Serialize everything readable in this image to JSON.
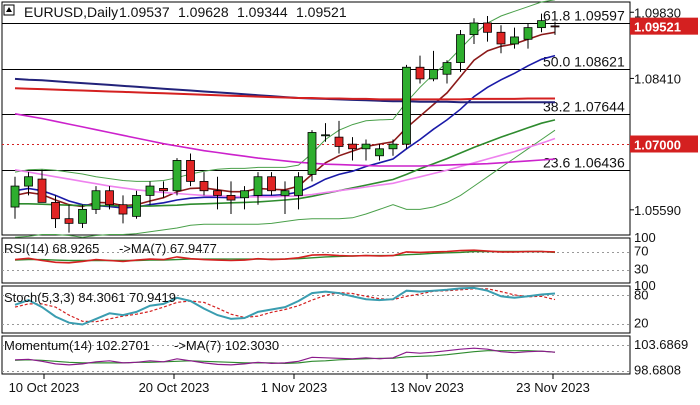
{
  "chart_data": {
    "type": "candlestick",
    "title": "EURUSD,Daily",
    "ohlc_header": [
      "1.09537",
      "1.09628",
      "1.09344",
      "1.09521"
    ],
    "price_ticks": [
      "1.09830",
      "1.08410",
      "1.05590"
    ],
    "last_price_label": "1.09521",
    "level_label": "1.07000",
    "fib_levels": [
      {
        "label": "61.8",
        "value": 1.09597,
        "text": "1.09597"
      },
      {
        "label": "50.0",
        "value": 1.08621,
        "text": "1.08621"
      },
      {
        "label": "38.2",
        "value": 1.07644,
        "text": "1.07644"
      },
      {
        "label": "23.6",
        "value": 1.06436,
        "text": "1.06436"
      }
    ],
    "horizontal_level": 1.07,
    "x_labels": [
      "10 Oct 2023",
      "20 Oct 2023",
      "1 Nov 2023",
      "13 Nov 2023",
      "23 Nov 2023"
    ],
    "candles": [
      {
        "o": 1.0565,
        "h": 1.063,
        "l": 1.054,
        "c": 1.061
      },
      {
        "o": 1.061,
        "h": 1.064,
        "l": 1.059,
        "c": 1.063
      },
      {
        "o": 1.0625,
        "h": 1.0645,
        "l": 1.0575,
        "c": 1.0575
      },
      {
        "o": 1.0575,
        "h": 1.059,
        "l": 1.052,
        "c": 1.054
      },
      {
        "o": 1.054,
        "h": 1.057,
        "l": 1.051,
        "c": 1.053
      },
      {
        "o": 1.053,
        "h": 1.057,
        "l": 1.052,
        "c": 1.056
      },
      {
        "o": 1.056,
        "h": 1.061,
        "l": 1.055,
        "c": 1.06
      },
      {
        "o": 1.06,
        "h": 1.061,
        "l": 1.056,
        "c": 1.057
      },
      {
        "o": 1.057,
        "h": 1.059,
        "l": 1.053,
        "c": 1.055
      },
      {
        "o": 1.0545,
        "h": 1.06,
        "l": 1.054,
        "c": 1.059
      },
      {
        "o": 1.059,
        "h": 1.062,
        "l": 1.057,
        "c": 1.061
      },
      {
        "o": 1.0605,
        "h": 1.062,
        "l": 1.0585,
        "c": 1.06
      },
      {
        "o": 1.06,
        "h": 1.067,
        "l": 1.059,
        "c": 1.0665
      },
      {
        "o": 1.0665,
        "h": 1.068,
        "l": 1.061,
        "c": 1.062
      },
      {
        "o": 1.062,
        "h": 1.064,
        "l": 1.059,
        "c": 1.06
      },
      {
        "o": 1.06,
        "h": 1.063,
        "l": 1.056,
        "c": 1.059
      },
      {
        "o": 1.059,
        "h": 1.062,
        "l": 1.055,
        "c": 1.058
      },
      {
        "o": 1.0585,
        "h": 1.061,
        "l": 1.056,
        "c": 1.06
      },
      {
        "o": 1.059,
        "h": 1.064,
        "l": 1.057,
        "c": 1.063
      },
      {
        "o": 1.063,
        "h": 1.064,
        "l": 1.059,
        "c": 1.06
      },
      {
        "o": 1.059,
        "h": 1.062,
        "l": 1.055,
        "c": 1.06
      },
      {
        "o": 1.059,
        "h": 1.064,
        "l": 1.056,
        "c": 1.063
      },
      {
        "o": 1.0635,
        "h": 1.073,
        "l": 1.062,
        "c": 1.0725
      },
      {
        "o": 1.072,
        "h": 1.0745,
        "l": 1.0705,
        "c": 1.072
      },
      {
        "o": 1.0715,
        "h": 1.075,
        "l": 1.068,
        "c": 1.0695
      },
      {
        "o": 1.07,
        "h": 1.0715,
        "l": 1.0665,
        "c": 1.069
      },
      {
        "o": 1.069,
        "h": 1.071,
        "l": 1.0665,
        "c": 1.07
      },
      {
        "o": 1.0675,
        "h": 1.07,
        "l": 1.0665,
        "c": 1.069
      },
      {
        "o": 1.069,
        "h": 1.071,
        "l": 1.0675,
        "c": 1.07
      },
      {
        "o": 1.07,
        "h": 1.087,
        "l": 1.069,
        "c": 1.0865
      },
      {
        "o": 1.0865,
        "h": 1.089,
        "l": 1.083,
        "c": 1.084
      },
      {
        "o": 1.084,
        "h": 1.09,
        "l": 1.0835,
        "c": 1.086
      },
      {
        "o": 1.085,
        "h": 1.088,
        "l": 1.083,
        "c": 1.0875
      },
      {
        "o": 1.0875,
        "h": 1.0945,
        "l": 1.0855,
        "c": 1.0935
      },
      {
        "o": 1.0935,
        "h": 1.097,
        "l": 1.0915,
        "c": 1.096
      },
      {
        "o": 1.096,
        "h": 1.0975,
        "l": 1.092,
        "c": 1.094
      },
      {
        "o": 1.094,
        "h": 1.0955,
        "l": 1.0895,
        "c": 1.0915
      },
      {
        "o": 1.0915,
        "h": 1.095,
        "l": 1.0905,
        "c": 1.093
      },
      {
        "o": 1.0925,
        "h": 1.096,
        "l": 1.0905,
        "c": 1.095
      },
      {
        "o": 1.095,
        "h": 1.098,
        "l": 1.094,
        "c": 1.0965
      },
      {
        "o": 1.09537,
        "h": 1.09628,
        "l": 1.09344,
        "c": 1.09521
      }
    ],
    "ma_series": [
      {
        "color": "#8b1a1a",
        "values": [
          1.059,
          1.0596,
          1.0592,
          1.058,
          1.057,
          1.0566,
          1.0575,
          1.0574,
          1.0568,
          1.057,
          1.0578,
          1.0585,
          1.0598,
          1.0605,
          1.0606,
          1.0602,
          1.0598,
          1.0598,
          1.0605,
          1.0603,
          1.0602,
          1.061,
          1.0635,
          1.066,
          1.0675,
          1.0685,
          1.0695,
          1.07,
          1.0705,
          1.0735,
          1.076,
          1.0785,
          1.081,
          1.0845,
          1.088,
          1.09,
          1.091,
          1.0915,
          1.0925,
          1.0935,
          1.094
        ]
      },
      {
        "color": "#1a1aa8",
        "values": [
          1.06,
          1.0605,
          1.06,
          1.059,
          1.0578,
          1.057,
          1.0568,
          1.0566,
          1.0563,
          1.0565,
          1.057,
          1.0574,
          1.058,
          1.0584,
          1.0586,
          1.0586,
          1.0585,
          1.0586,
          1.059,
          1.059,
          1.0592,
          1.0597,
          1.061,
          1.0625,
          1.0635,
          1.0642,
          1.0652,
          1.066,
          1.0668,
          1.069,
          1.071,
          1.0732,
          1.0752,
          1.0775,
          1.0802,
          1.0822,
          1.0838,
          1.0852,
          1.0868,
          1.0882,
          1.089
        ]
      },
      {
        "color": "#2e8b2e",
        "values": [
          1.0572,
          1.0572,
          1.0571,
          1.057,
          1.0569,
          1.0568,
          1.0568,
          1.0568,
          1.0567,
          1.0567,
          1.0567,
          1.0568,
          1.0569,
          1.0571,
          1.0572,
          1.0573,
          1.0574,
          1.0575,
          1.0576,
          1.0578,
          1.058,
          1.0583,
          1.0588,
          1.0594,
          1.06,
          1.0606,
          1.0612,
          1.0618,
          1.0624,
          1.0635,
          1.0647,
          1.0658,
          1.0669,
          1.0681,
          1.0693,
          1.0704,
          1.0715,
          1.0725,
          1.0735,
          1.0745,
          1.0752
        ]
      },
      {
        "color": "#ee82ee",
        "values": [
          1.0645,
          1.064,
          1.0635,
          1.063,
          1.0625,
          1.062,
          1.0615,
          1.061,
          1.0606,
          1.0602,
          1.0599,
          1.0596,
          1.0594,
          1.0592,
          1.059,
          1.0589,
          1.0588,
          1.0587,
          1.0587,
          1.0587,
          1.0588,
          1.0589,
          1.0592,
          1.0596,
          1.06,
          1.0604,
          1.0608,
          1.0612,
          1.0616,
          1.0623,
          1.063,
          1.0637,
          1.0644,
          1.0652,
          1.066,
          1.0668,
          1.0676,
          1.0684,
          1.0693,
          1.0702,
          1.0712
        ]
      },
      {
        "color": "#cc22cc",
        "values": [
          1.0765,
          1.076,
          1.0755,
          1.0749,
          1.0743,
          1.0737,
          1.0731,
          1.0725,
          1.0719,
          1.0713,
          1.0707,
          1.0701,
          1.0696,
          1.0691,
          1.0686,
          1.0682,
          1.0678,
          1.0674,
          1.067,
          1.0667,
          1.0664,
          1.0661,
          1.0659,
          1.0657,
          1.0656,
          1.0655,
          1.0654,
          1.0653,
          1.0653,
          1.0653,
          1.0653,
          1.0654,
          1.0655,
          1.0656,
          1.0657,
          1.0658,
          1.066,
          1.0662,
          1.0664,
          1.0666,
          1.0668
        ]
      },
      {
        "color": "#22227a",
        "values": [
          1.084,
          1.0838,
          1.0837,
          1.0835,
          1.0833,
          1.0831,
          1.0829,
          1.0827,
          1.0825,
          1.0823,
          1.0821,
          1.0819,
          1.0817,
          1.0815,
          1.0813,
          1.0811,
          1.0809,
          1.0807,
          1.0805,
          1.0803,
          1.0801,
          1.0799,
          1.0798,
          1.0797,
          1.0796,
          1.0795,
          1.0794,
          1.0793,
          1.0792,
          1.0792,
          1.0791,
          1.0791,
          1.0791,
          1.079,
          1.079,
          1.079,
          1.079,
          1.079,
          1.079,
          1.079,
          1.079
        ]
      },
      {
        "color": "#d42020",
        "values": [
          1.082,
          1.0819,
          1.0818,
          1.0817,
          1.0816,
          1.0815,
          1.0814,
          1.0813,
          1.0812,
          1.0811,
          1.081,
          1.0809,
          1.0808,
          1.0807,
          1.0806,
          1.0805,
          1.0804,
          1.0803,
          1.0802,
          1.0801,
          1.08,
          1.0799,
          1.0799,
          1.0798,
          1.0798,
          1.0797,
          1.0797,
          1.0796,
          1.0796,
          1.0796,
          1.0796,
          1.0796,
          1.0796,
          1.0796,
          1.0797,
          1.0797,
          1.0797,
          1.0797,
          1.0798,
          1.0798,
          1.0798
        ]
      }
    ],
    "bollinger": [
      {
        "color": "#4aa04a",
        "values": [
          1.064,
          1.0645,
          1.0646,
          1.0644,
          1.064,
          1.0636,
          1.063,
          1.0626,
          1.0622,
          1.062,
          1.062,
          1.0622,
          1.0628,
          1.0636,
          1.0642,
          1.0646,
          1.0648,
          1.0648,
          1.065,
          1.065,
          1.065,
          1.0655,
          1.068,
          1.071,
          1.073,
          1.0742,
          1.075,
          1.0752,
          1.0753,
          1.079,
          1.0822,
          1.085,
          1.0875,
          1.0905,
          1.0935,
          1.096,
          1.0975,
          1.0985,
          1.0995,
          1.1005,
          1.101
        ]
      },
      {
        "color": "#4aa04a",
        "values": [
          1.05,
          1.0502,
          1.0506,
          1.0506,
          1.0504,
          1.05,
          1.0504,
          1.0506,
          1.0506,
          1.0508,
          1.0512,
          1.0516,
          1.052,
          1.0526,
          1.0528,
          1.0528,
          1.0528,
          1.0528,
          1.0528,
          1.053,
          1.0534,
          1.0538,
          1.054,
          1.054,
          1.054,
          1.0542,
          1.055,
          1.056,
          1.057,
          1.056,
          1.056,
          1.0565,
          1.0575,
          1.059,
          1.061,
          1.063,
          1.065,
          1.067,
          1.069,
          1.071,
          1.073
        ]
      }
    ],
    "rsi": {
      "label": "RSI(14) 68.9265",
      "ma_label": "->MA(7) 67.9477",
      "ticks": [
        "100",
        "70",
        "30"
      ],
      "ylim": [
        0,
        100
      ],
      "values": [
        52,
        55,
        50,
        46,
        45,
        48,
        52,
        50,
        48,
        51,
        53,
        52,
        58,
        54,
        52,
        51,
        50,
        51,
        54,
        52,
        53,
        56,
        62,
        63,
        61,
        60,
        61,
        60,
        61,
        69,
        68,
        69,
        70,
        72,
        73,
        71,
        69,
        69,
        70,
        70,
        69
      ],
      "ma": [
        51,
        52,
        52,
        51,
        50,
        50,
        50,
        50,
        50,
        50,
        51,
        51,
        52,
        53,
        53,
        53,
        53,
        53,
        53,
        53,
        53,
        54,
        56,
        58,
        59,
        60,
        61,
        61,
        61,
        63,
        64,
        66,
        67,
        68,
        70,
        70,
        70,
        70,
        70,
        70,
        68
      ]
    },
    "stoch": {
      "label": "Stoch(5,3,3) 84.3061 70.9419",
      "ticks": [
        "100",
        "80",
        "20"
      ],
      "ylim": [
        0,
        100
      ],
      "k": [
        60,
        70,
        55,
        35,
        22,
        18,
        30,
        42,
        38,
        45,
        58,
        62,
        75,
        68,
        52,
        38,
        30,
        32,
        45,
        50,
        55,
        68,
        85,
        88,
        85,
        78,
        72,
        70,
        72,
        90,
        88,
        90,
        92,
        95,
        96,
        90,
        78,
        75,
        78,
        82,
        84
      ],
      "d": [
        55,
        62,
        62,
        55,
        38,
        25,
        24,
        30,
        36,
        40,
        46,
        55,
        65,
        68,
        65,
        53,
        40,
        33,
        36,
        44,
        50,
        58,
        70,
        80,
        86,
        84,
        78,
        73,
        71,
        78,
        83,
        89,
        90,
        92,
        94,
        94,
        88,
        81,
        77,
        78,
        71
      ]
    },
    "momentum": {
      "label": "Momentum(14) 102.2701",
      "ma_label": "->MA(7) 102.3030",
      "ticks": [
        "103.6869",
        "98.6808"
      ],
      "ylim": [
        98.0,
        105.5
      ],
      "values": [
        100.8,
        100.9,
        100.5,
        100.0,
        99.8,
        100.0,
        100.4,
        100.6,
        100.2,
        100.3,
        100.6,
        100.4,
        101.0,
        100.6,
        100.2,
        99.9,
        99.8,
        100.0,
        100.3,
        100.1,
        100.2,
        100.5,
        101.3,
        101.2,
        101.1,
        101.0,
        101.2,
        101.0,
        101.2,
        102.3,
        102.1,
        102.3,
        102.6,
        102.9,
        103.1,
        102.9,
        102.4,
        102.2,
        102.4,
        102.5,
        102.3
      ],
      "ma": [
        100.7,
        100.8,
        100.7,
        100.5,
        100.3,
        100.2,
        100.2,
        100.2,
        100.2,
        100.3,
        100.3,
        100.4,
        100.5,
        100.6,
        100.5,
        100.4,
        100.3,
        100.2,
        100.2,
        100.2,
        100.1,
        100.2,
        100.5,
        100.6,
        100.8,
        100.9,
        101.0,
        101.1,
        101.1,
        101.4,
        101.5,
        101.6,
        101.8,
        102.1,
        102.4,
        102.6,
        102.6,
        102.6,
        102.6,
        102.5,
        102.3
      ]
    }
  }
}
